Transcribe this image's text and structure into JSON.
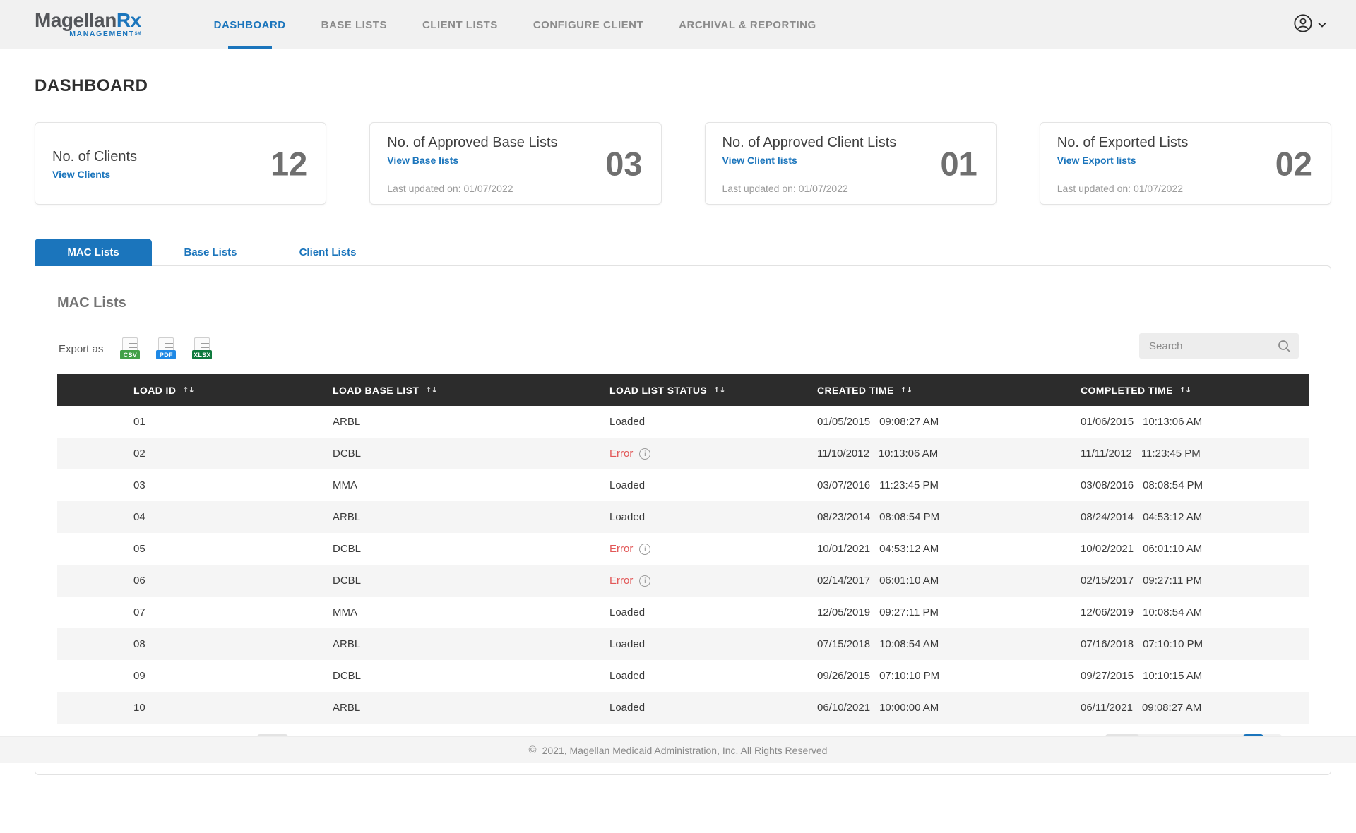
{
  "header": {
    "logo": {
      "name": "Magellan",
      "rx": "Rx",
      "management": "MANAGEMENT",
      "mark": "SM"
    },
    "nav": [
      {
        "label": "DASHBOARD",
        "active": true
      },
      {
        "label": "BASE LISTS",
        "active": false
      },
      {
        "label": "CLIENT LISTS",
        "active": false
      },
      {
        "label": "CONFIGURE CLIENT",
        "active": false
      },
      {
        "label": "ARCHIVAL & REPORTING",
        "active": false
      }
    ]
  },
  "page_title": "DASHBOARD",
  "stat_cards": [
    {
      "title": "No. of Clients",
      "link": "View Clients",
      "value": "12"
    },
    {
      "title": "No. of Approved Base Lists",
      "link": "View Base lists",
      "value": "03",
      "last_updated": "Last updated on: 01/07/2022"
    },
    {
      "title": "No. of Approved Client Lists",
      "link": "View Client lists",
      "value": "01",
      "last_updated": "Last updated on: 01/07/2022"
    },
    {
      "title": "No. of Exported Lists",
      "link": "View Export lists",
      "value": "02",
      "last_updated": "Last updated on: 01/07/2022"
    }
  ],
  "tabs": [
    {
      "label": "MAC Lists",
      "active": true
    },
    {
      "label": "Base Lists",
      "active": false
    },
    {
      "label": "Client Lists",
      "active": false
    }
  ],
  "panel": {
    "heading": "MAC Lists",
    "export_label": "Export as",
    "export_options": [
      {
        "label": "CSV",
        "color": "#43a047"
      },
      {
        "label": "PDF",
        "color": "#1e88e5"
      },
      {
        "label": "XLSX",
        "color": "#0f7a3d"
      }
    ],
    "search_placeholder": "Search"
  },
  "table": {
    "sort_glyph": "↑↓",
    "info_glyph": "i",
    "columns": [
      "LOAD ID",
      "LOAD BASE LIST",
      "LOAD LIST STATUS",
      "CREATED TIME",
      "COMPLETED TIME"
    ],
    "rows": [
      {
        "load_id": "01",
        "base_list": "ARBL",
        "status": "Loaded",
        "created_date": "01/05/2015",
        "created_time": "09:08:27 AM",
        "completed_date": "01/06/2015",
        "completed_time": "10:13:06 AM"
      },
      {
        "load_id": "02",
        "base_list": "DCBL",
        "status": "Error",
        "created_date": "11/10/2012",
        "created_time": "10:13:06 AM",
        "completed_date": "11/11/2012",
        "completed_time": "11:23:45 PM"
      },
      {
        "load_id": "03",
        "base_list": "MMA",
        "status": "Loaded",
        "created_date": "03/07/2016",
        "created_time": "11:23:45 PM",
        "completed_date": "03/08/2016",
        "completed_time": "08:08:54 PM"
      },
      {
        "load_id": "04",
        "base_list": "ARBL",
        "status": "Loaded",
        "created_date": "08/23/2014",
        "created_time": "08:08:54 PM",
        "completed_date": "08/24/2014",
        "completed_time": "04:53:12 AM"
      },
      {
        "load_id": "05",
        "base_list": "DCBL",
        "status": "Error",
        "created_date": "10/01/2021",
        "created_time": "04:53:12 AM",
        "completed_date": "10/02/2021",
        "completed_time": "06:01:10 AM"
      },
      {
        "load_id": "06",
        "base_list": "DCBL",
        "status": "Error",
        "created_date": "02/14/2017",
        "created_time": "06:01:10 AM",
        "completed_date": "02/15/2017",
        "completed_time": "09:27:11 PM"
      },
      {
        "load_id": "07",
        "base_list": "MMA",
        "status": "Loaded",
        "created_date": "12/05/2019",
        "created_time": "09:27:11 PM",
        "completed_date": "12/06/2019",
        "completed_time": "10:08:54 AM"
      },
      {
        "load_id": "08",
        "base_list": "ARBL",
        "status": "Loaded",
        "created_date": "07/15/2018",
        "created_time": "10:08:54 AM",
        "completed_date": "07/16/2018",
        "completed_time": "07:10:10 PM"
      },
      {
        "load_id": "09",
        "base_list": "DCBL",
        "status": "Loaded",
        "created_date": "09/26/2015",
        "created_time": "07:10:10 PM",
        "completed_date": "09/27/2015",
        "completed_time": "10:10:15 AM"
      },
      {
        "load_id": "10",
        "base_list": "ARBL",
        "status": "Loaded",
        "created_date": "06/10/2021",
        "created_time": "10:00:00 AM",
        "completed_date": "06/11/2021",
        "completed_time": "09:08:27 AM"
      }
    ]
  },
  "footer": {
    "symbol": "©",
    "copyright": "2021, Magellan Medicaid Administration, Inc. All Rights Reserved"
  },
  "colors": {
    "accent_blue": "#1b75bc",
    "error_red": "#e25757",
    "table_header": "#2c2c2c",
    "header_bg": "#f1f1f1",
    "footer_bg": "#f4f4f4"
  }
}
